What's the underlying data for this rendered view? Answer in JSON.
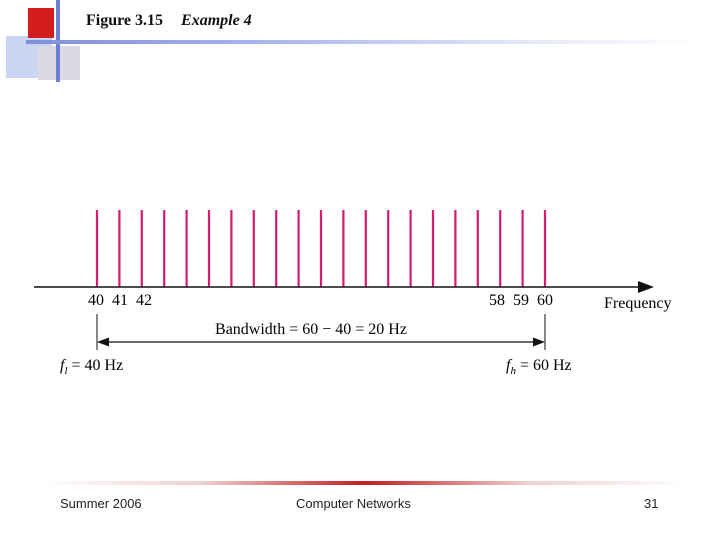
{
  "header": {
    "figure_label": "Figure 3.15",
    "example_label": "Example 4"
  },
  "diagram": {
    "spike_count": 21,
    "tick_labels_left": [
      "40",
      "41",
      "42"
    ],
    "tick_labels_right": [
      "58",
      "59",
      "60"
    ],
    "axis_label": "Frequency",
    "bandwidth_label": "Bandwidth = 60 − 40 = 20 Hz",
    "f_low_symbol": "f",
    "f_low_sub": "l",
    "f_low_value": " = 40 Hz",
    "f_high_symbol": "f",
    "f_high_sub": "h",
    "f_high_value": " = 60 Hz",
    "colors": {
      "spike": "#d81b72",
      "axis": "#111111"
    }
  },
  "footer": {
    "left": "Summer 2006",
    "center": "Computer Networks",
    "right": "31"
  }
}
